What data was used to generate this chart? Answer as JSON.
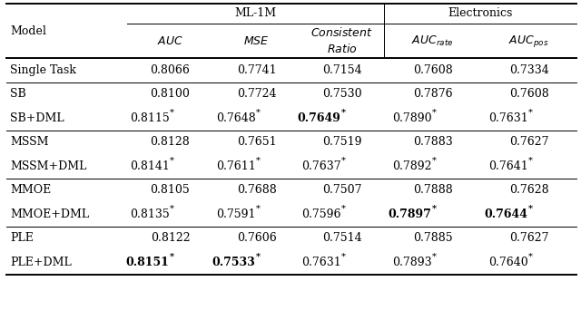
{
  "title_ml1m": "ML-1M",
  "title_electronics": "Electronics",
  "col_header_model": "Model",
  "rows": [
    {
      "model": "Single Task",
      "vals": [
        "0.8066",
        "0.7741",
        "0.7154",
        "0.7608",
        "0.7334"
      ],
      "bold": [
        false,
        false,
        false,
        false,
        false
      ],
      "star": [
        false,
        false,
        false,
        false,
        false
      ]
    },
    {
      "model": "SB",
      "vals": [
        "0.8100",
        "0.7724",
        "0.7530",
        "0.7876",
        "0.7608"
      ],
      "bold": [
        false,
        false,
        false,
        false,
        false
      ],
      "star": [
        false,
        false,
        false,
        false,
        false
      ]
    },
    {
      "model": "SB+DML",
      "vals": [
        "0.8115",
        "0.7648",
        "0.7649",
        "0.7890",
        "0.7631"
      ],
      "bold": [
        false,
        false,
        true,
        false,
        false
      ],
      "star": [
        true,
        true,
        true,
        true,
        true
      ]
    },
    {
      "model": "MSSM",
      "vals": [
        "0.8128",
        "0.7651",
        "0.7519",
        "0.7883",
        "0.7627"
      ],
      "bold": [
        false,
        false,
        false,
        false,
        false
      ],
      "star": [
        false,
        false,
        false,
        false,
        false
      ]
    },
    {
      "model": "MSSM+DML",
      "vals": [
        "0.8141",
        "0.7611",
        "0.7637",
        "0.7892",
        "0.7641"
      ],
      "bold": [
        false,
        false,
        false,
        false,
        false
      ],
      "star": [
        true,
        true,
        true,
        true,
        true
      ]
    },
    {
      "model": "MMOE",
      "vals": [
        "0.8105",
        "0.7688",
        "0.7507",
        "0.7888",
        "0.7628"
      ],
      "bold": [
        false,
        false,
        false,
        false,
        false
      ],
      "star": [
        false,
        false,
        false,
        false,
        false
      ]
    },
    {
      "model": "MMOE+DML",
      "vals": [
        "0.8135",
        "0.7591",
        "0.7596",
        "0.7897",
        "0.7644"
      ],
      "bold": [
        false,
        false,
        false,
        true,
        true
      ],
      "star": [
        true,
        true,
        true,
        true,
        true
      ]
    },
    {
      "model": "PLE",
      "vals": [
        "0.8122",
        "0.7606",
        "0.7514",
        "0.7885",
        "0.7627"
      ],
      "bold": [
        false,
        false,
        false,
        false,
        false
      ],
      "star": [
        false,
        false,
        false,
        false,
        false
      ]
    },
    {
      "model": "PLE+DML",
      "vals": [
        "0.8151",
        "0.7533",
        "0.7631",
        "0.7893",
        "0.7640"
      ],
      "bold": [
        true,
        true,
        false,
        false,
        false
      ],
      "star": [
        true,
        true,
        true,
        true,
        true
      ]
    }
  ],
  "group_separators_after_rows": [
    0,
    2,
    4,
    6
  ],
  "bg_color": "#ffffff",
  "text_color": "#000000",
  "font_size": 9.0,
  "fig_width": 6.4,
  "fig_height": 3.53,
  "dpi": 100
}
